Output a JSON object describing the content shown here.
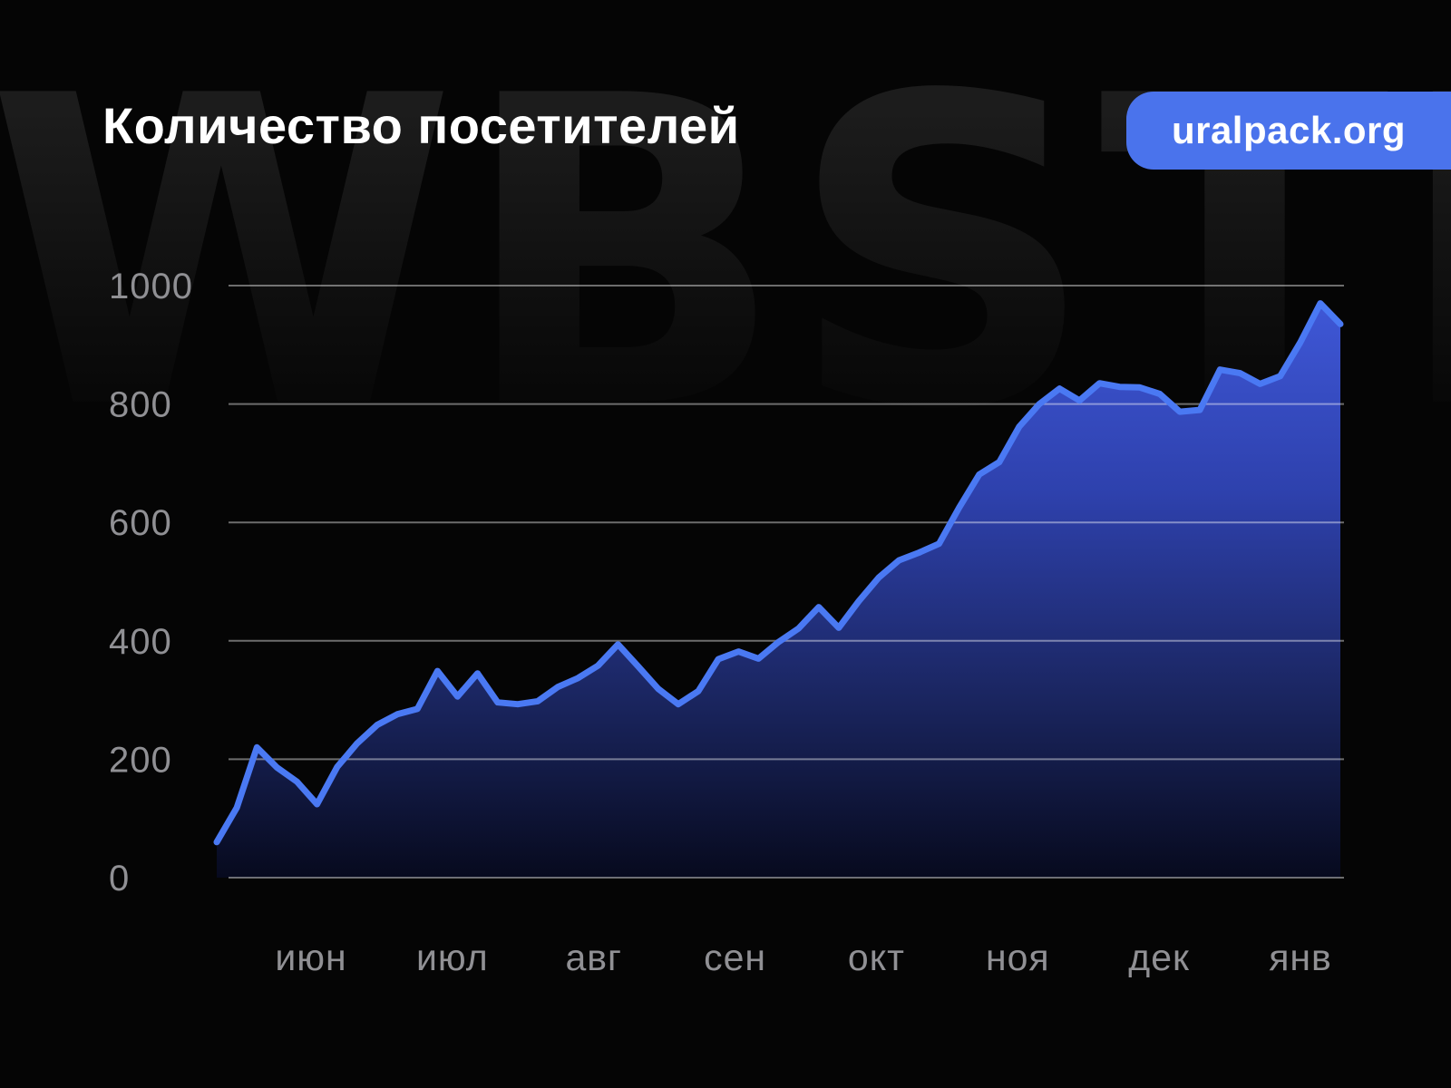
{
  "page": {
    "background": "#050505",
    "watermark_text": "WBSTR",
    "watermark_color": "#1c1c1c",
    "title_color": "#ffffff"
  },
  "header": {
    "title": "Количество посетителей",
    "badge": {
      "label": "uralpack.org",
      "background": "#4a73ec",
      "text_color": "#ffffff"
    }
  },
  "chart_data": {
    "type": "area",
    "title": "Количество посетителей",
    "xlabel": "",
    "ylabel": "",
    "x_tick_labels": [
      "июн",
      "июл",
      "авг",
      "сен",
      "окт",
      "ноя",
      "дек",
      "янв"
    ],
    "y_ticks": [
      0,
      200,
      400,
      600,
      800,
      1000
    ],
    "ylim": [
      0,
      1000
    ],
    "grid": true,
    "legend": false,
    "series": [
      {
        "name": "Количество посетителей",
        "values": [
          60,
          118,
          220,
          186,
          162,
          124,
          187,
          227,
          258,
          276,
          285,
          349,
          306,
          345,
          296,
          293,
          298,
          322,
          337,
          358,
          394,
          357,
          319,
          293,
          315,
          369,
          382,
          370,
          398,
          421,
          457,
          422,
          467,
          507,
          536,
          549,
          564,
          625,
          681,
          702,
          762,
          800,
          826,
          806,
          835,
          829,
          828,
          817,
          787,
          790,
          858,
          852,
          834,
          847,
          904,
          970,
          935
        ]
      }
    ],
    "colors": {
      "line": "#4a79f3",
      "area_gradient_top": "#4059da",
      "area_gradient_mid": "#2e41ad",
      "area_gradient_low": "#1a255f",
      "area_gradient_bottom": "#070a1e",
      "grid": "#6f6f73",
      "axis_text": "#909094"
    }
  }
}
